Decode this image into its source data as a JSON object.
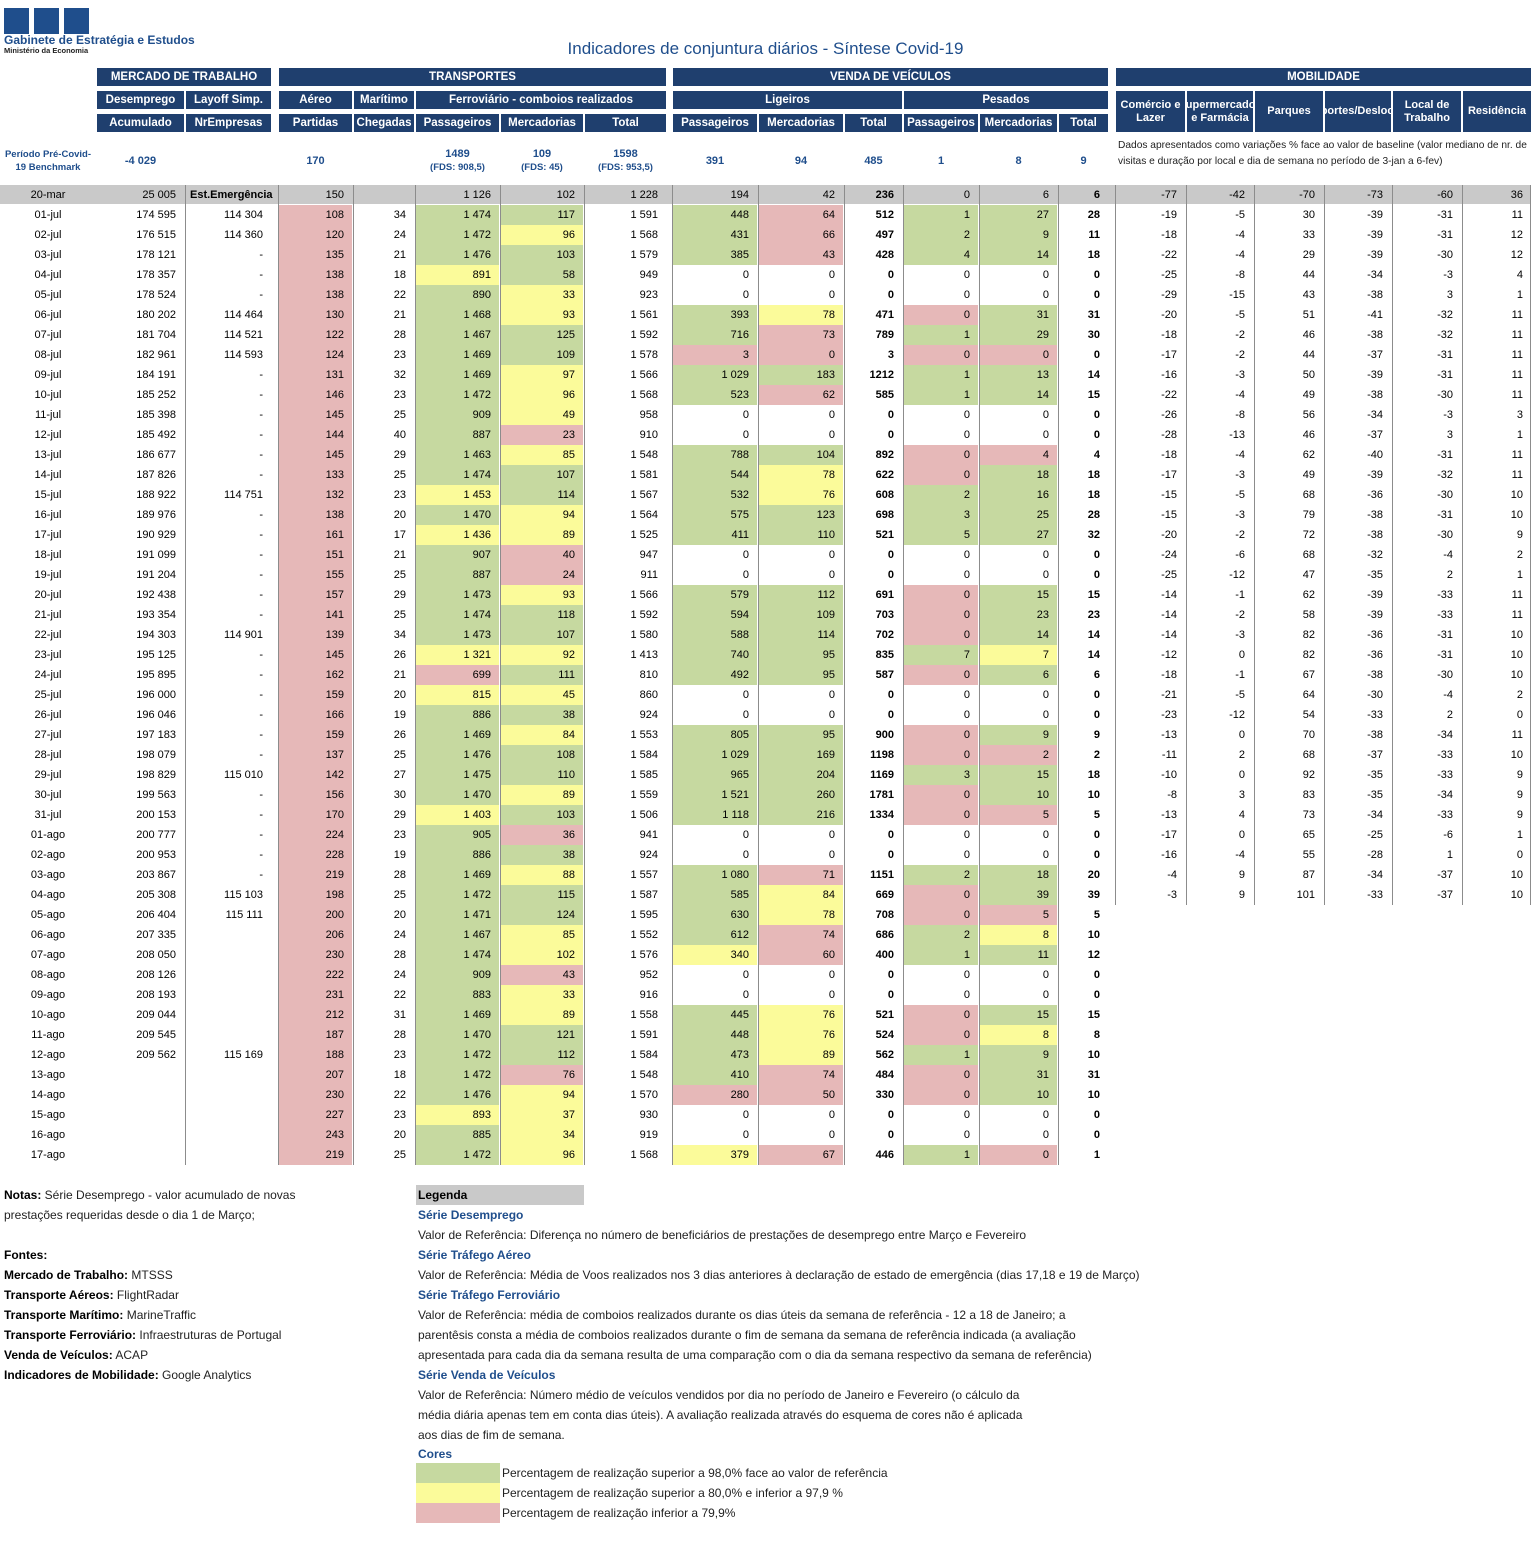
{
  "org": {
    "name": "Gabinete de Estratégia e Estudos",
    "ministry": "Ministério da Economia"
  },
  "title": "Indicadores de conjuntura diários - Síntese Covid-19",
  "groups": {
    "mercado": "MERCADO DE TRABALHO",
    "transportes": "TRANSPORTES",
    "venda": "VENDA DE VEÍCULOS",
    "mobilidade": "MOBILIDADE"
  },
  "subgroups": {
    "desemprego": "Desemprego",
    "layoff": "Layoff Simp.",
    "aereo": "Aéreo",
    "maritimo": "Marítimo",
    "ferroviario": "Ferroviário - comboios realizados",
    "ligeiros": "Ligeiros",
    "pesados": "Pesados"
  },
  "cols": {
    "acumulado": "Acumulado",
    "nrempresas": "NrEmpresas",
    "partidas": "Partidas",
    "chegadas": "Chegadas",
    "passageiros": "Passageiros",
    "mercadorias": "Mercadorias",
    "total": "Total"
  },
  "mob_cols": [
    "Comércio e Lazer",
    "Supermercados e Farmácia",
    "Parques",
    "Transportes/Deslocações",
    "Local de Trabalho",
    "Residência"
  ],
  "benchmark": {
    "label": "Período Pré-Covid-19 Benchmark",
    "desemprego": "-4 029",
    "aereo": "170",
    "ferro_pass": "1489",
    "ferro_pass_sub": "(FDS: 908,5)",
    "ferro_merc": "109",
    "ferro_merc_sub": "(FDS: 45)",
    "ferro_total": "1598",
    "ferro_total_sub": "(FDS: 953,5)",
    "lig_pass": "391",
    "lig_merc": "94",
    "lig_total": "485",
    "pes_pass": "1",
    "pes_merc": "8",
    "pes_total": "9"
  },
  "mob_note": "Dados apresentados como variações % face ao valor de baseline (valor mediano de nr. de visitas e duração por local e dia de semana no período de 3-jan a 6-fev)",
  "ref_row": [
    "20-mar",
    "25 005",
    "Est.Emergência",
    "150",
    "",
    "1 126",
    "102",
    "1 228",
    "194",
    "42",
    "236",
    "0",
    "6",
    "6",
    "-77",
    "-42",
    "-70",
    "-73",
    "-60",
    "36"
  ],
  "rows": [
    [
      "01-jul",
      "174 595",
      "114 304",
      "108",
      "34",
      "1 474",
      "117",
      "1 591",
      "448",
      "64",
      "512",
      "1",
      "27",
      "28",
      "-19",
      "-5",
      "30",
      "-39",
      "-31",
      "11"
    ],
    [
      "02-jul",
      "176 515",
      "114 360",
      "120",
      "24",
      "1 472",
      "96",
      "1 568",
      "431",
      "66",
      "497",
      "2",
      "9",
      "11",
      "-18",
      "-4",
      "33",
      "-39",
      "-31",
      "12"
    ],
    [
      "03-jul",
      "178 121",
      "-",
      "135",
      "21",
      "1 476",
      "103",
      "1 579",
      "385",
      "43",
      "428",
      "4",
      "14",
      "18",
      "-22",
      "-4",
      "29",
      "-39",
      "-30",
      "12"
    ],
    [
      "04-jul",
      "178 357",
      "-",
      "138",
      "18",
      "891",
      "58",
      "949",
      "0",
      "0",
      "0",
      "0",
      "0",
      "0",
      "-25",
      "-8",
      "44",
      "-34",
      "-3",
      "4"
    ],
    [
      "05-jul",
      "178 524",
      "-",
      "138",
      "22",
      "890",
      "33",
      "923",
      "0",
      "0",
      "0",
      "0",
      "0",
      "0",
      "-29",
      "-15",
      "43",
      "-38",
      "3",
      "1"
    ],
    [
      "06-jul",
      "180 202",
      "114 464",
      "130",
      "21",
      "1 468",
      "93",
      "1 561",
      "393",
      "78",
      "471",
      "0",
      "31",
      "31",
      "-20",
      "-5",
      "51",
      "-41",
      "-32",
      "11"
    ],
    [
      "07-jul",
      "181 704",
      "114 521",
      "122",
      "28",
      "1 467",
      "125",
      "1 592",
      "716",
      "73",
      "789",
      "1",
      "29",
      "30",
      "-18",
      "-2",
      "46",
      "-38",
      "-32",
      "11"
    ],
    [
      "08-jul",
      "182 961",
      "114 593",
      "124",
      "23",
      "1 469",
      "109",
      "1 578",
      "3",
      "0",
      "3",
      "0",
      "0",
      "0",
      "-17",
      "-2",
      "44",
      "-37",
      "-31",
      "11"
    ],
    [
      "09-jul",
      "184 191",
      "-",
      "131",
      "32",
      "1 469",
      "97",
      "1 566",
      "1 029",
      "183",
      "1212",
      "1",
      "13",
      "14",
      "-16",
      "-3",
      "50",
      "-39",
      "-31",
      "11"
    ],
    [
      "10-jul",
      "185 252",
      "-",
      "146",
      "23",
      "1 472",
      "96",
      "1 568",
      "523",
      "62",
      "585",
      "1",
      "14",
      "15",
      "-22",
      "-4",
      "49",
      "-38",
      "-30",
      "11"
    ],
    [
      "11-jul",
      "185 398",
      "-",
      "145",
      "25",
      "909",
      "49",
      "958",
      "0",
      "0",
      "0",
      "0",
      "0",
      "0",
      "-26",
      "-8",
      "56",
      "-34",
      "-3",
      "3"
    ],
    [
      "12-jul",
      "185 492",
      "-",
      "144",
      "40",
      "887",
      "23",
      "910",
      "0",
      "0",
      "0",
      "0",
      "0",
      "0",
      "-28",
      "-13",
      "46",
      "-37",
      "3",
      "1"
    ],
    [
      "13-jul",
      "186 677",
      "-",
      "145",
      "29",
      "1 463",
      "85",
      "1 548",
      "788",
      "104",
      "892",
      "0",
      "4",
      "4",
      "-18",
      "-4",
      "62",
      "-40",
      "-31",
      "11"
    ],
    [
      "14-jul",
      "187 826",
      "-",
      "133",
      "25",
      "1 474",
      "107",
      "1 581",
      "544",
      "78",
      "622",
      "0",
      "18",
      "18",
      "-17",
      "-3",
      "49",
      "-39",
      "-32",
      "11"
    ],
    [
      "15-jul",
      "188 922",
      "114 751",
      "132",
      "23",
      "1 453",
      "114",
      "1 567",
      "532",
      "76",
      "608",
      "2",
      "16",
      "18",
      "-15",
      "-5",
      "68",
      "-36",
      "-30",
      "10"
    ],
    [
      "16-jul",
      "189 976",
      "-",
      "138",
      "20",
      "1 470",
      "94",
      "1 564",
      "575",
      "123",
      "698",
      "3",
      "25",
      "28",
      "-15",
      "-3",
      "79",
      "-38",
      "-31",
      "10"
    ],
    [
      "17-jul",
      "190 929",
      "-",
      "161",
      "17",
      "1 436",
      "89",
      "1 525",
      "411",
      "110",
      "521",
      "5",
      "27",
      "32",
      "-20",
      "-2",
      "72",
      "-38",
      "-30",
      "9"
    ],
    [
      "18-jul",
      "191 099",
      "-",
      "151",
      "21",
      "907",
      "40",
      "947",
      "0",
      "0",
      "0",
      "0",
      "0",
      "0",
      "-24",
      "-6",
      "68",
      "-32",
      "-4",
      "2"
    ],
    [
      "19-jul",
      "191 204",
      "-",
      "155",
      "25",
      "887",
      "24",
      "911",
      "0",
      "0",
      "0",
      "0",
      "0",
      "0",
      "-25",
      "-12",
      "47",
      "-35",
      "2",
      "1"
    ],
    [
      "20-jul",
      "192 438",
      "-",
      "157",
      "29",
      "1 473",
      "93",
      "1 566",
      "579",
      "112",
      "691",
      "0",
      "15",
      "15",
      "-14",
      "-1",
      "62",
      "-39",
      "-33",
      "11"
    ],
    [
      "21-jul",
      "193 354",
      "-",
      "141",
      "25",
      "1 474",
      "118",
      "1 592",
      "594",
      "109",
      "703",
      "0",
      "23",
      "23",
      "-14",
      "-2",
      "58",
      "-39",
      "-33",
      "11"
    ],
    [
      "22-jul",
      "194 303",
      "114 901",
      "139",
      "34",
      "1 473",
      "107",
      "1 580",
      "588",
      "114",
      "702",
      "0",
      "14",
      "14",
      "-14",
      "-3",
      "82",
      "-36",
      "-31",
      "10"
    ],
    [
      "23-jul",
      "195 125",
      "-",
      "145",
      "26",
      "1 321",
      "92",
      "1 413",
      "740",
      "95",
      "835",
      "7",
      "7",
      "14",
      "-12",
      "0",
      "82",
      "-36",
      "-31",
      "10"
    ],
    [
      "24-jul",
      "195 895",
      "-",
      "162",
      "21",
      "699",
      "111",
      "810",
      "492",
      "95",
      "587",
      "0",
      "6",
      "6",
      "-18",
      "-1",
      "67",
      "-38",
      "-30",
      "10"
    ],
    [
      "25-jul",
      "196 000",
      "-",
      "159",
      "20",
      "815",
      "45",
      "860",
      "0",
      "0",
      "0",
      "0",
      "0",
      "0",
      "-21",
      "-5",
      "64",
      "-30",
      "-4",
      "2"
    ],
    [
      "26-jul",
      "196 046",
      "-",
      "166",
      "19",
      "886",
      "38",
      "924",
      "0",
      "0",
      "0",
      "0",
      "0",
      "0",
      "-23",
      "-12",
      "54",
      "-33",
      "2",
      "0"
    ],
    [
      "27-jul",
      "197 183",
      "-",
      "159",
      "26",
      "1 469",
      "84",
      "1 553",
      "805",
      "95",
      "900",
      "0",
      "9",
      "9",
      "-13",
      "0",
      "70",
      "-38",
      "-34",
      "11"
    ],
    [
      "28-jul",
      "198 079",
      "-",
      "137",
      "25",
      "1 476",
      "108",
      "1 584",
      "1 029",
      "169",
      "1198",
      "0",
      "2",
      "2",
      "-11",
      "2",
      "68",
      "-37",
      "-33",
      "10"
    ],
    [
      "29-jul",
      "198 829",
      "115 010",
      "142",
      "27",
      "1 475",
      "110",
      "1 585",
      "965",
      "204",
      "1169",
      "3",
      "15",
      "18",
      "-10",
      "0",
      "92",
      "-35",
      "-33",
      "9"
    ],
    [
      "30-jul",
      "199 563",
      "-",
      "156",
      "30",
      "1 470",
      "89",
      "1 559",
      "1 521",
      "260",
      "1781",
      "0",
      "10",
      "10",
      "-8",
      "3",
      "83",
      "-35",
      "-34",
      "9"
    ],
    [
      "31-jul",
      "200 153",
      "-",
      "170",
      "29",
      "1 403",
      "103",
      "1 506",
      "1 118",
      "216",
      "1334",
      "0",
      "5",
      "5",
      "-13",
      "4",
      "73",
      "-34",
      "-33",
      "9"
    ],
    [
      "01-ago",
      "200 777",
      "-",
      "224",
      "23",
      "905",
      "36",
      "941",
      "0",
      "0",
      "0",
      "0",
      "0",
      "0",
      "-17",
      "0",
      "65",
      "-25",
      "-6",
      "1"
    ],
    [
      "02-ago",
      "200 953",
      "-",
      "228",
      "19",
      "886",
      "38",
      "924",
      "0",
      "0",
      "0",
      "0",
      "0",
      "0",
      "-16",
      "-4",
      "55",
      "-28",
      "1",
      "0"
    ],
    [
      "03-ago",
      "203 867",
      "-",
      "219",
      "28",
      "1 469",
      "88",
      "1 557",
      "1 080",
      "71",
      "1151",
      "2",
      "18",
      "20",
      "-4",
      "9",
      "87",
      "-34",
      "-37",
      "10"
    ],
    [
      "04-ago",
      "205 308",
      "115 103",
      "198",
      "25",
      "1 472",
      "115",
      "1 587",
      "585",
      "84",
      "669",
      "0",
      "39",
      "39",
      "-3",
      "9",
      "101",
      "-33",
      "-37",
      "10"
    ],
    [
      "05-ago",
      "206 404",
      "115 111",
      "200",
      "20",
      "1 471",
      "124",
      "1 595",
      "630",
      "78",
      "708",
      "0",
      "5",
      "5",
      "",
      "",
      "",
      "",
      "",
      ""
    ],
    [
      "06-ago",
      "207 335",
      "",
      "206",
      "24",
      "1 467",
      "85",
      "1 552",
      "612",
      "74",
      "686",
      "2",
      "8",
      "10",
      "",
      "",
      "",
      "",
      "",
      ""
    ],
    [
      "07-ago",
      "208 050",
      "",
      "230",
      "28",
      "1 474",
      "102",
      "1 576",
      "340",
      "60",
      "400",
      "1",
      "11",
      "12",
      "",
      "",
      "",
      "",
      "",
      ""
    ],
    [
      "08-ago",
      "208 126",
      "",
      "222",
      "24",
      "909",
      "43",
      "952",
      "0",
      "0",
      "0",
      "0",
      "0",
      "0",
      "",
      "",
      "",
      "",
      "",
      ""
    ],
    [
      "09-ago",
      "208 193",
      "",
      "231",
      "22",
      "883",
      "33",
      "916",
      "0",
      "0",
      "0",
      "0",
      "0",
      "0",
      "",
      "",
      "",
      "",
      "",
      ""
    ],
    [
      "10-ago",
      "209 044",
      "",
      "212",
      "31",
      "1 469",
      "89",
      "1 558",
      "445",
      "76",
      "521",
      "0",
      "15",
      "15",
      "",
      "",
      "",
      "",
      "",
      ""
    ],
    [
      "11-ago",
      "209 545",
      "",
      "187",
      "28",
      "1 470",
      "121",
      "1 591",
      "448",
      "76",
      "524",
      "0",
      "8",
      "8",
      "",
      "",
      "",
      "",
      "",
      ""
    ],
    [
      "12-ago",
      "209 562",
      "115 169",
      "188",
      "23",
      "1 472",
      "112",
      "1 584",
      "473",
      "89",
      "562",
      "1",
      "9",
      "10",
      "",
      "",
      "",
      "",
      "",
      ""
    ],
    [
      "13-ago",
      "",
      "",
      "207",
      "18",
      "1 472",
      "76",
      "1 548",
      "410",
      "74",
      "484",
      "0",
      "31",
      "31",
      "",
      "",
      "",
      "",
      "",
      ""
    ],
    [
      "14-ago",
      "",
      "",
      "230",
      "22",
      "1 476",
      "94",
      "1 570",
      "280",
      "50",
      "330",
      "0",
      "10",
      "10",
      "",
      "",
      "",
      "",
      "",
      ""
    ],
    [
      "15-ago",
      "",
      "",
      "227",
      "23",
      "893",
      "37",
      "930",
      "0",
      "0",
      "0",
      "0",
      "0",
      "0",
      "",
      "",
      "",
      "",
      "",
      ""
    ],
    [
      "16-ago",
      "",
      "",
      "243",
      "20",
      "885",
      "34",
      "919",
      "0",
      "0",
      "0",
      "0",
      "0",
      "0",
      "",
      "",
      "",
      "",
      "",
      ""
    ],
    [
      "17-ago",
      "",
      "",
      "219",
      "25",
      "1 472",
      "96",
      "1 568",
      "379",
      "67",
      "446",
      "1",
      "0",
      "1",
      "",
      "",
      "",
      "",
      "",
      ""
    ]
  ],
  "colors": {
    "aereo": "rrrrrrrrrrrrrrrrrrrrrrrrrrrrrrrrrrrrrrrrrrrrrrrr",
    "ferro_pass": "gggyygggggggggyggyggggyrygggggggggggggggggggggyg",
    "ferro_merc": "gygggggggyyrgggyyrrygyggggggggggrgggggyrrygggrrrgyy",
    "lig_pass": "ggg--ggrgg--gggg--ggggg--ggggg--ggggy--ggggr--y",
    "lig_merc": "rrr--yrrgr--gyyg--gggg--gggg--rygyrrr--yrrr--r",
    "pes_pass": "ggg--rg-gg--rrgg--rrrgr--rrgrr--grrgg--rrgrr--g",
    "pes_merc": "ggg--ggrgg--rgggg--gggyg--grgg--ggry--gyg--gg--r",
    "legend_green": "#c6d9a0",
    "legend_yellow": "#fbfb9a",
    "legend_red": "#e6b8b8",
    "header_blue": "#1f3f6e"
  },
  "notes": {
    "notas_label": "Notas:",
    "notas_1": " Série Desemprego - valor acumulado de novas",
    "notas_2": "prestações requeridas desde o dia 1 de Março;",
    "fontes": "Fontes:",
    "sources": [
      {
        "k": "Mercado de Trabalho:",
        "v": " MTSSS"
      },
      {
        "k": "Transporte Aéreos:",
        "v": " FlightRadar"
      },
      {
        "k": "Transporte Marítimo:",
        "v": " MarineTraffic"
      },
      {
        "k": "Transporte Ferroviário:",
        "v": " Infraestruturas de Portugal"
      },
      {
        "k": "Venda de Veículos:",
        "v": " ACAP"
      },
      {
        "k": "Indicadores de Mobilidade:",
        "v": " Google Analytics"
      }
    ]
  },
  "legend": {
    "title": "Legenda",
    "s1": "Série Desemprego",
    "s1_t": "Valor de Referência: Diferença no número de beneficiários de prestações de desemprego entre Março e Fevereiro",
    "s2": "Série Tráfego Aéreo",
    "s2_t": "Valor de Referência: Média de Voos realizados nos 3 dias anteriores à declaração de estado de emergência (dias 17,18 e 19 de Março)",
    "s3": "Série Tráfego Ferroviário",
    "s3_t1": "Valor de Referência: média de comboios realizados durante os dias úteis da semana de referência - 12 a 18 de Janeiro; a",
    "s3_t2": "parentêsis consta a média de comboios realizados durante o fim de semana da semana de referência indicada (a avaliação",
    "s3_t3": "apresentada para cada dia da semana resulta de uma comparação com o dia da semana respectivo da semana de referência)",
    "s4": "Série Venda de Veículos",
    "s4_t1": "Valor de Referência: Número médio de veículos vendidos por dia no período de Janeiro e Fevereiro (o cálculo da",
    "s4_t2": "média diária apenas tem em conta dias úteis). A avaliação realizada através do esquema de cores não é aplicada",
    "s4_t3": "aos dias de fim de semana.",
    "cores": "Cores",
    "c1": "Percentagem de realização superior a 98,0% face ao valor de referência",
    "c2": "Percentagem de realização superior a 80,0% e inferior a 97,9 %",
    "c3": "Percentagem de realização inferior a 79,9%"
  }
}
